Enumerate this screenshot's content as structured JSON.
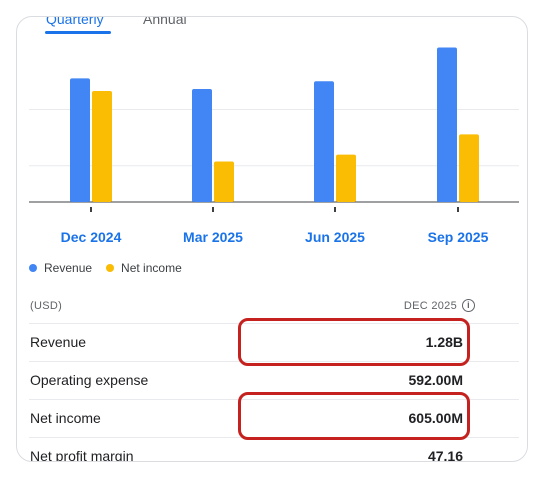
{
  "tabs": [
    {
      "label": "Quarterly",
      "active": true
    },
    {
      "label": "Annual",
      "active": false
    }
  ],
  "chart_data": {
    "type": "bar",
    "categories": [
      "Dec 2024",
      "Mar 2025",
      "Jun 2025",
      "Sep 2025"
    ],
    "series": [
      {
        "name": "Revenue",
        "values": [
          1.28,
          1.17,
          1.25,
          1.6
        ],
        "color": "#4285f4"
      },
      {
        "name": "Net income",
        "values": [
          1.15,
          0.42,
          0.49,
          0.7
        ],
        "color": "#fbbc04"
      }
    ],
    "ylim": [
      0,
      1.75
    ],
    "grid": true
  },
  "legend": [
    {
      "label": "Revenue",
      "color": "#4285f4"
    },
    {
      "label": "Net income",
      "color": "#fbbc04"
    }
  ],
  "table": {
    "unit": "(USD)",
    "period": "DEC 2025",
    "rows": [
      {
        "label": "Revenue",
        "value": "1.28B"
      },
      {
        "label": "Operating expense",
        "value": "592.00M"
      },
      {
        "label": "Net income",
        "value": "605.00M"
      },
      {
        "label": "Net profit margin",
        "value": "47.16"
      }
    ]
  }
}
